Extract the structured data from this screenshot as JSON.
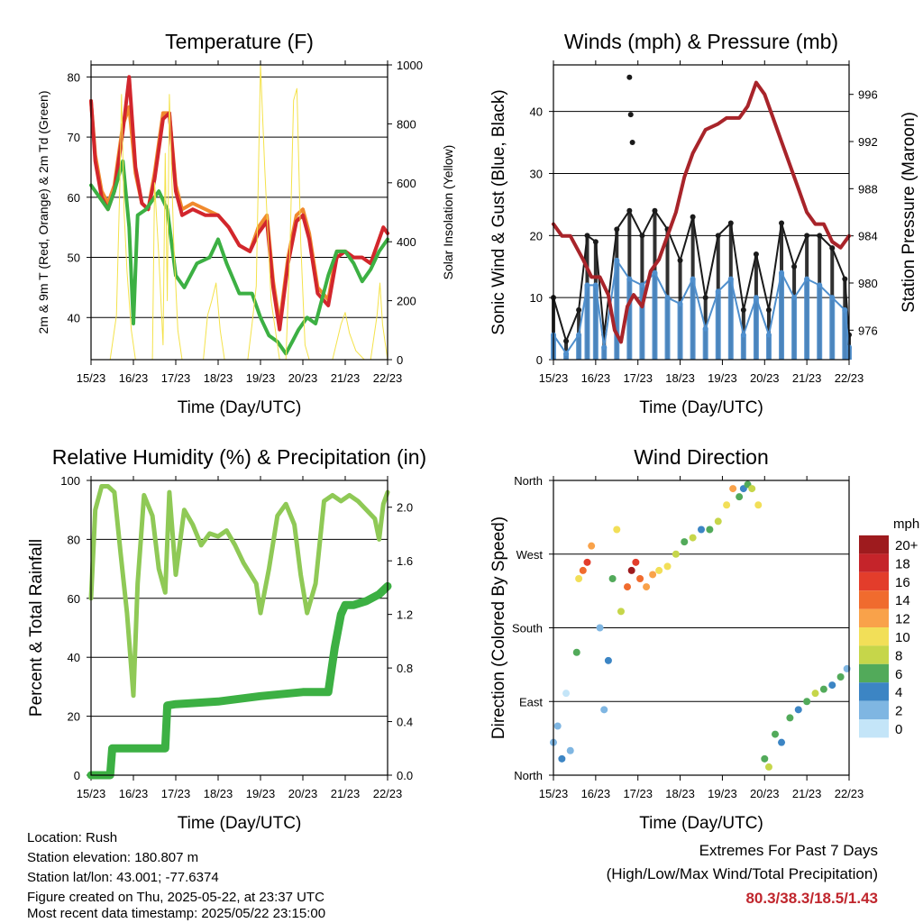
{
  "footer": {
    "location": "Location: Rush",
    "elevation": "Station elevation: 180.807 m",
    "latlon": "Station lat/lon: 43.001; -77.6374",
    "created": "Figure created on Thu, 2025-05-22, at 23:37 UTC",
    "recent": "Most recent data timestamp: 2025/05/22 23:15:00"
  },
  "extremes": {
    "title": "Extremes For Past 7 Days",
    "subtitle": "(High/Low/Max Wind/Total Precipitation)",
    "values": "80.3/38.3/18.5/1.43",
    "color": "#c0262d"
  },
  "chart_data": [
    {
      "id": "temperature",
      "type": "line",
      "title": "Temperature (F)",
      "xlabel": "Time (Day/UTC)",
      "ylabel": "2m & 9m T (Red, Orange) & 2m Td (Green)",
      "y2label": "Solar Insolation (Yellow)",
      "x_ticks": [
        "15/23",
        "16/23",
        "17/23",
        "18/23",
        "19/23",
        "20/23",
        "21/23",
        "22/23"
      ],
      "xlim": [
        0,
        7
      ],
      "ylim": [
        33,
        82
      ],
      "y_ticks": [
        40,
        50,
        60,
        70,
        80
      ],
      "y2lim": [
        0,
        1000
      ],
      "y2_ticks": [
        0,
        200,
        400,
        600,
        800,
        1000
      ],
      "grid": true,
      "series": [
        {
          "color": "#f08a2e",
          "axis": "left",
          "x": [
            0,
            0.1,
            0.25,
            0.4,
            0.55,
            0.75,
            0.9,
            1.05,
            1.2,
            1.35,
            1.5,
            1.7,
            1.85,
            2.0,
            2.15,
            2.4,
            2.7,
            3.0,
            3.25,
            3.5,
            3.75,
            3.95,
            4.15,
            4.3,
            4.45,
            4.65,
            4.85,
            5.0,
            5.15,
            5.35,
            5.6,
            5.8,
            6.0,
            6.2,
            6.4,
            6.6,
            6.8,
            6.9,
            7.0
          ],
          "y": [
            76,
            67,
            61,
            59,
            62,
            72,
            75,
            64,
            59,
            58,
            64,
            74,
            74,
            62,
            58,
            59,
            58,
            57,
            55,
            52,
            51,
            55,
            57,
            46,
            39,
            50,
            57,
            58,
            54,
            45,
            43,
            51,
            51,
            50,
            50,
            49,
            53,
            55,
            54
          ]
        },
        {
          "color": "#d2262d",
          "axis": "left",
          "x": [
            0,
            0.1,
            0.25,
            0.4,
            0.55,
            0.75,
            0.9,
            1.05,
            1.2,
            1.35,
            1.5,
            1.7,
            1.85,
            2.0,
            2.15,
            2.4,
            2.7,
            3.0,
            3.25,
            3.5,
            3.75,
            3.95,
            4.15,
            4.3,
            4.45,
            4.65,
            4.85,
            5.0,
            5.15,
            5.35,
            5.6,
            5.8,
            6.0,
            6.2,
            6.4,
            6.6,
            6.8,
            6.9,
            7.0
          ],
          "y": [
            76,
            66,
            60,
            58,
            61,
            71,
            80,
            65,
            59,
            58,
            63,
            73,
            74,
            61,
            57,
            58,
            57,
            57,
            55,
            52,
            51,
            54,
            56,
            45,
            38,
            49,
            56,
            57,
            53,
            44,
            42,
            50,
            51,
            50,
            50,
            49,
            53,
            55,
            54
          ]
        },
        {
          "color": "#3cb043",
          "axis": "left",
          "x": [
            0,
            0.2,
            0.4,
            0.55,
            0.75,
            0.9,
            1.0,
            1.1,
            1.3,
            1.6,
            1.8,
            2.0,
            2.2,
            2.5,
            2.8,
            3.0,
            3.2,
            3.5,
            3.8,
            4.0,
            4.2,
            4.4,
            4.6,
            4.75,
            4.9,
            5.1,
            5.3,
            5.6,
            5.8,
            6.0,
            6.2,
            6.4,
            6.6,
            6.8,
            7.0
          ],
          "y": [
            62,
            60,
            58,
            61,
            66,
            55,
            39,
            57,
            58,
            61,
            58,
            47,
            45,
            49,
            50,
            53,
            49,
            44,
            44,
            40,
            37,
            36,
            34,
            36,
            38,
            40,
            39,
            47,
            51,
            51,
            49,
            46,
            48,
            51,
            53
          ]
        },
        {
          "color": "#f4e24a",
          "axis": "right",
          "x": [
            0,
            0.45,
            0.6,
            0.68,
            0.72,
            0.78,
            0.85,
            0.95,
            1.05,
            1.15,
            1.2,
            1.3,
            1.4,
            1.45,
            1.5,
            1.6,
            1.7,
            1.75,
            1.8,
            1.85,
            1.95,
            2.05,
            2.15,
            2.4,
            2.65,
            2.75,
            2.85,
            2.95,
            3.05,
            3.15,
            3.4,
            3.7,
            3.8,
            3.9,
            4.0,
            4.1,
            4.25,
            4.45,
            4.6,
            4.7,
            4.78,
            4.86,
            4.95,
            5.05,
            5.15,
            5.4,
            5.7,
            5.9,
            6.0,
            6.1,
            6.25,
            6.45,
            6.6,
            6.75,
            6.82,
            6.88,
            7.0
          ],
          "y": [
            0,
            0,
            150,
            600,
            900,
            500,
            300,
            100,
            0,
            0,
            0,
            0,
            0,
            0,
            600,
            350,
            50,
            700,
            200,
            900,
            400,
            100,
            0,
            0,
            0,
            150,
            200,
            260,
            100,
            0,
            0,
            0,
            120,
            250,
            1000,
            650,
            200,
            0,
            0,
            400,
            880,
            920,
            400,
            50,
            0,
            0,
            0,
            120,
            160,
            90,
            30,
            0,
            0,
            150,
            260,
            120,
            0
          ]
        }
      ]
    },
    {
      "id": "winds-pressure",
      "type": "scatter",
      "title": "Winds (mph) & Pressure (mb)",
      "xlabel": "Time (Day/UTC)",
      "ylabel": "Sonic Wind & Gust (Blue, Black)",
      "y2label": "Station Pressure (Maroon)",
      "x_ticks": [
        "15/23",
        "16/23",
        "17/23",
        "18/23",
        "19/23",
        "20/23",
        "21/23",
        "22/23"
      ],
      "xlim": [
        0,
        7
      ],
      "ylim": [
        0,
        47.5
      ],
      "y_ticks": [
        0,
        10,
        20,
        30,
        40
      ],
      "y2lim": [
        973.5,
        998.5
      ],
      "y2_ticks": [
        976,
        980,
        984,
        988,
        992,
        996
      ],
      "grid": true,
      "series": [
        {
          "color": "#1a1a1a",
          "axis": "left",
          "kind": "gust",
          "x": [
            0,
            0.3,
            0.6,
            0.8,
            1.0,
            1.2,
            1.5,
            1.8,
            2.1,
            2.4,
            2.7,
            3.0,
            3.3,
            3.6,
            3.9,
            4.2,
            4.5,
            4.8,
            5.1,
            5.4,
            5.7,
            6.0,
            6.3,
            6.6,
            6.9,
            7.0
          ],
          "y": [
            10,
            3,
            8,
            20,
            19,
            4,
            21,
            24,
            20,
            24,
            21,
            16,
            23,
            10,
            20,
            22,
            8,
            17,
            8,
            22,
            15,
            20,
            20,
            18,
            13,
            4
          ]
        },
        {
          "color": "#4f8fcd",
          "axis": "left",
          "kind": "wind",
          "x": [
            0,
            0.3,
            0.6,
            0.8,
            1.0,
            1.2,
            1.5,
            1.8,
            2.1,
            2.4,
            2.7,
            3.0,
            3.3,
            3.6,
            3.9,
            4.2,
            4.5,
            4.8,
            5.1,
            5.4,
            5.7,
            6.0,
            6.3,
            6.6,
            6.9,
            7.0
          ],
          "y": [
            4,
            1,
            4,
            12,
            12,
            2,
            16,
            13,
            12,
            14,
            10,
            9,
            13,
            5,
            11,
            13,
            4,
            10,
            4,
            14,
            10,
            13,
            12,
            10,
            8,
            2
          ]
        },
        {
          "color": "#1a1a1a",
          "axis": "left",
          "kind": "outliers",
          "x": [
            1.8,
            1.83,
            1.87
          ],
          "y": [
            45.5,
            39.5,
            35
          ]
        },
        {
          "color": "#a8242a",
          "axis": "right",
          "x": [
            0,
            0.2,
            0.4,
            0.7,
            0.9,
            1.1,
            1.3,
            1.45,
            1.6,
            1.75,
            1.9,
            2.1,
            2.3,
            2.5,
            2.7,
            2.9,
            3.1,
            3.3,
            3.6,
            3.9,
            4.1,
            4.4,
            4.6,
            4.8,
            5.0,
            5.2,
            5.4,
            5.6,
            5.8,
            6.0,
            6.2,
            6.4,
            6.6,
            6.8,
            7.0
          ],
          "y": [
            985,
            984,
            984,
            982,
            980.5,
            980.5,
            979,
            976,
            975,
            978,
            979,
            978,
            981,
            982,
            984,
            986,
            989,
            991,
            993,
            993.5,
            994,
            994,
            995,
            997,
            996,
            994,
            992,
            990,
            988,
            986,
            985,
            985,
            983.5,
            983,
            984
          ]
        }
      ]
    },
    {
      "id": "humidity-precip",
      "type": "line",
      "title": "Relative Humidity (%) & Precipitation (in)",
      "xlabel": "Time (Day/UTC)",
      "ylabel": "Percent & Total Rainfall",
      "x_ticks": [
        "15/23",
        "16/23",
        "17/23",
        "18/23",
        "19/23",
        "20/23",
        "21/23",
        "22/23"
      ],
      "xlim": [
        0,
        7
      ],
      "ylim": [
        0,
        100
      ],
      "y_ticks": [
        0,
        20,
        40,
        60,
        80,
        100
      ],
      "y2lim": [
        0,
        2.2
      ],
      "y2_ticks": [
        "0.0",
        "0.4",
        "0.8",
        "1.2",
        "1.6",
        "2.0"
      ],
      "grid": true,
      "series": [
        {
          "color": "#8fc956",
          "axis": "left",
          "x": [
            0,
            0.1,
            0.25,
            0.4,
            0.55,
            0.7,
            0.85,
            1.0,
            1.1,
            1.25,
            1.45,
            1.6,
            1.75,
            1.85,
            2.0,
            2.2,
            2.4,
            2.6,
            2.8,
            3.0,
            3.2,
            3.4,
            3.6,
            3.9,
            4.0,
            4.2,
            4.4,
            4.6,
            4.8,
            4.95,
            5.1,
            5.3,
            5.5,
            5.7,
            5.9,
            6.1,
            6.3,
            6.5,
            6.7,
            6.8,
            6.9,
            7.0
          ],
          "y": [
            60,
            90,
            98,
            98,
            96,
            75,
            55,
            27,
            65,
            95,
            88,
            70,
            62,
            96,
            68,
            90,
            85,
            78,
            82,
            81,
            83,
            78,
            72,
            65,
            55,
            70,
            88,
            92,
            85,
            68,
            55,
            65,
            93,
            95,
            93,
            95,
            93,
            90,
            87,
            80,
            92,
            96
          ]
        },
        {
          "color": "#3cb043",
          "axis": "right",
          "x": [
            0,
            0.45,
            0.5,
            1.75,
            1.8,
            2.0,
            3.0,
            4.0,
            5.0,
            5.6,
            5.75,
            5.9,
            6.0,
            6.2,
            6.5,
            6.8,
            7.0
          ],
          "y": [
            0,
            0,
            0.2,
            0.2,
            0.52,
            0.53,
            0.55,
            0.59,
            0.62,
            0.62,
            0.95,
            1.2,
            1.27,
            1.27,
            1.3,
            1.35,
            1.41
          ]
        }
      ]
    },
    {
      "id": "wind-direction",
      "type": "scatter",
      "title": "Wind Direction",
      "xlabel": "Time (Day/UTC)",
      "ylabel": "Direction (Colored By Speed)",
      "x_ticks": [
        "15/23",
        "16/23",
        "17/23",
        "18/23",
        "19/23",
        "20/23",
        "21/23",
        "22/23"
      ],
      "xlim": [
        0,
        7
      ],
      "ylim": [
        0,
        360
      ],
      "y_ticks": [
        "North",
        "East",
        "South",
        "West",
        "North"
      ],
      "legend": {
        "title": "mph",
        "labels": [
          "20+",
          "18",
          "16",
          "14",
          "12",
          "10",
          "8",
          "6",
          "4",
          "2",
          "0"
        ],
        "colors": [
          "#9e1b1e",
          "#c5242a",
          "#e33d2b",
          "#f06b2e",
          "#f9a24a",
          "#f2df58",
          "#c6d64a",
          "#52aa5a",
          "#3c85c4",
          "#7fb6e2",
          "#c4e5f8"
        ],
        "position": "right"
      },
      "points": {
        "x": [
          0,
          0.1,
          0.2,
          0.3,
          0.4,
          0.55,
          0.6,
          0.7,
          0.8,
          0.9,
          1.1,
          1.2,
          1.3,
          1.4,
          1.5,
          1.6,
          1.75,
          1.85,
          1.95,
          2.05,
          2.2,
          2.35,
          2.5,
          2.7,
          2.9,
          3.1,
          3.3,
          3.5,
          3.7,
          3.9,
          4.1,
          4.25,
          4.4,
          4.5,
          4.6,
          4.7,
          4.85,
          5.0,
          5.1,
          5.25,
          5.4,
          5.6,
          5.8,
          6.0,
          6.2,
          6.4,
          6.6,
          6.8,
          6.95
        ],
        "y": [
          40,
          60,
          20,
          100,
          30,
          150,
          240,
          250,
          260,
          280,
          180,
          80,
          140,
          240,
          300,
          200,
          230,
          250,
          260,
          240,
          230,
          245,
          250,
          255,
          270,
          285,
          290,
          300,
          300,
          310,
          330,
          350,
          340,
          350,
          355,
          350,
          330,
          20,
          10,
          50,
          40,
          70,
          80,
          90,
          100,
          105,
          110,
          120,
          130
        ],
        "speed": [
          2,
          1,
          3,
          0,
          2,
          6,
          10,
          14,
          16,
          12,
          2,
          1,
          4,
          6,
          10,
          8,
          14,
          20,
          16,
          14,
          12,
          12,
          10,
          10,
          8,
          6,
          8,
          4,
          6,
          8,
          10,
          12,
          6,
          4,
          6,
          8,
          10,
          6,
          8,
          6,
          4,
          6,
          4,
          6,
          8,
          6,
          4,
          6,
          2
        ]
      }
    }
  ]
}
